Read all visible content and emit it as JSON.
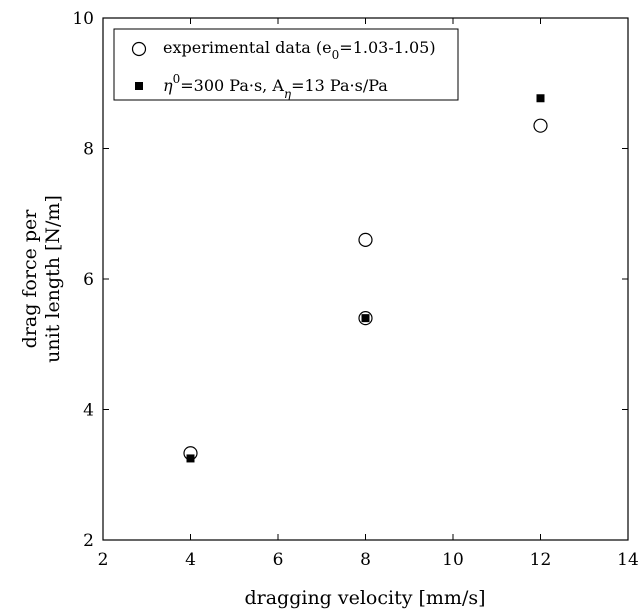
{
  "chart_data": {
    "type": "scatter",
    "title": "",
    "xlabel": "dragging velocity [mm/s]",
    "ylabel": [
      "drag force per",
      "unit length [N/m]"
    ],
    "xlim": [
      2,
      14
    ],
    "ylim": [
      2,
      10
    ],
    "xticks": [
      "2",
      "4",
      "6",
      "8",
      "10",
      "12",
      "14"
    ],
    "yticks": [
      "2",
      "4",
      "6",
      "8",
      "10"
    ],
    "grid": false,
    "legend_position": "top-left",
    "series": [
      {
        "key": "experimental",
        "marker": "open-circle",
        "legend": {
          "pre": "experimental data (e",
          "sub": "0",
          "post": "=1.03-1.05)"
        },
        "points": [
          {
            "x": 4,
            "y": 3.33
          },
          {
            "x": 8,
            "y": 6.6
          },
          {
            "x": 8,
            "y": 5.4
          },
          {
            "x": 12,
            "y": 8.35
          }
        ]
      },
      {
        "key": "model",
        "marker": "filled-square",
        "legend": {
          "eta": "η",
          "sup": "0",
          "mid": "=300 Pa·s, A",
          "sub": "η",
          "post": "=13 Pa·s/Pa"
        },
        "points": [
          {
            "x": 4,
            "y": 3.25
          },
          {
            "x": 8,
            "y": 5.4
          },
          {
            "x": 12,
            "y": 8.77
          }
        ]
      }
    ]
  }
}
